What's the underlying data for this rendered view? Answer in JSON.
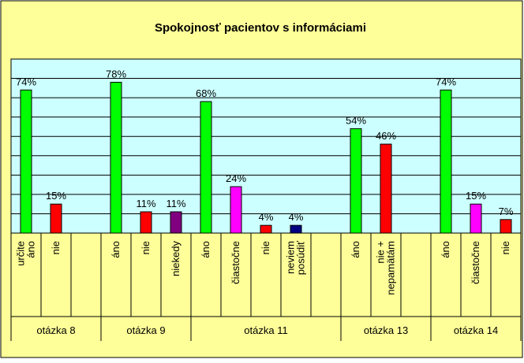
{
  "chart_data": {
    "type": "bar",
    "title": "Spokojnosť pacientov s informáciami",
    "xlabel": "",
    "ylabel": "",
    "ylim": [
      0,
      90
    ],
    "grid": true,
    "legend": "none",
    "value_suffix": "%",
    "colors": {
      "background": "#ffff99",
      "plot_area": "#ccffff",
      "green": "#00ff00",
      "red": "#ff0000",
      "purple": "#800080",
      "magenta": "#ff00ff",
      "navy": "#000080"
    },
    "groups": [
      {
        "name": "otázka 8",
        "bars": [
          {
            "label": "určite áno",
            "value": 74,
            "label_text": "74%",
            "color": "#00ff00"
          },
          {
            "label": "nie",
            "value": 15,
            "label_text": "15%",
            "color": "#ff0000"
          },
          {
            "label": "",
            "value": null,
            "label_text": "",
            "color": ""
          }
        ]
      },
      {
        "name": "otázka 9",
        "bars": [
          {
            "label": "áno",
            "value": 78,
            "label_text": "78%",
            "color": "#00ff00"
          },
          {
            "label": "nie",
            "value": 11,
            "label_text": "11%",
            "color": "#ff0000"
          },
          {
            "label": "niekedy",
            "value": 11,
            "label_text": "11%",
            "color": "#800080"
          }
        ]
      },
      {
        "name": "otázka 11",
        "bars": [
          {
            "label": "áno",
            "value": 68,
            "label_text": "68%",
            "color": "#00ff00"
          },
          {
            "label": "čiastočne",
            "value": 24,
            "label_text": "24%",
            "color": "#ff00ff"
          },
          {
            "label": "nie",
            "value": 4,
            "label_text": "4%",
            "color": "#ff0000"
          },
          {
            "label": "neviem posúdiť",
            "value": 4,
            "label_text": "4%",
            "color": "#000080"
          },
          {
            "label": "",
            "value": null,
            "label_text": "",
            "color": ""
          }
        ]
      },
      {
        "name": "otázka 13",
        "bars": [
          {
            "label": "áno",
            "value": 54,
            "label_text": "54%",
            "color": "#00ff00"
          },
          {
            "label": "nie + nepamätám",
            "value": 46,
            "label_text": "46%",
            "color": "#ff0000"
          },
          {
            "label": "",
            "value": null,
            "label_text": "",
            "color": ""
          }
        ]
      },
      {
        "name": "otázka 14",
        "bars": [
          {
            "label": "áno",
            "value": 74,
            "label_text": "74%",
            "color": "#00ff00"
          },
          {
            "label": "čiastočne",
            "value": 15,
            "label_text": "15%",
            "color": "#ff00ff"
          },
          {
            "label": "nie",
            "value": 7,
            "label_text": "7%",
            "color": "#ff0000"
          }
        ]
      }
    ]
  }
}
